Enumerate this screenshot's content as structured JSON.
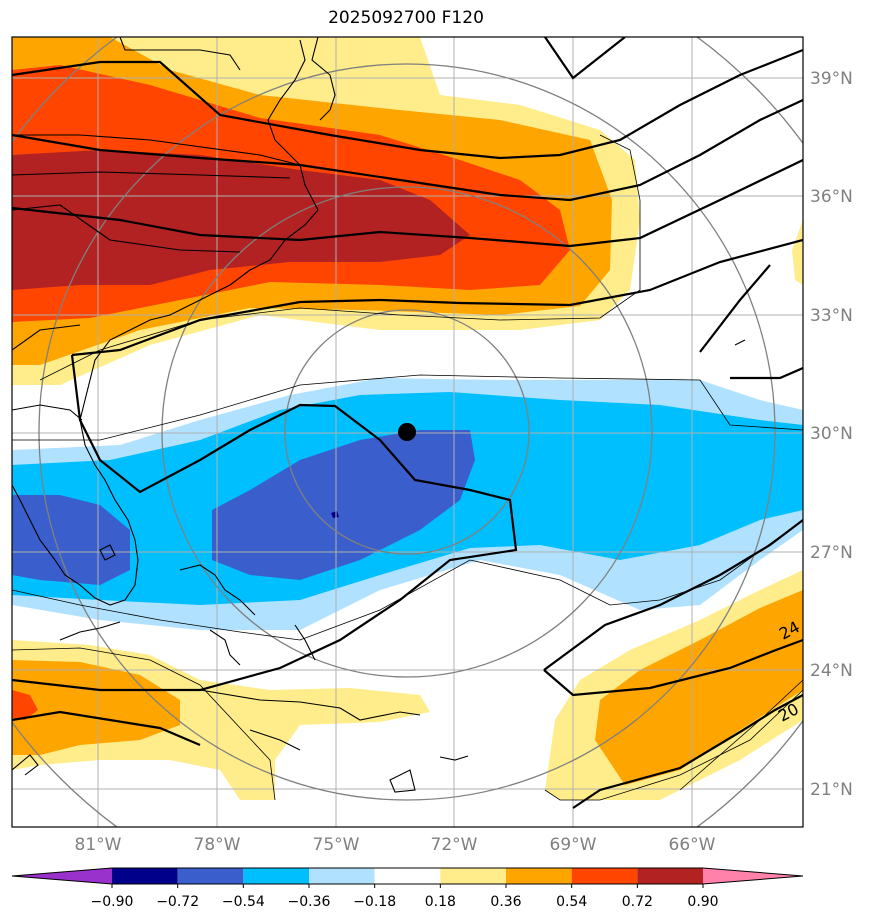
{
  "title": "2025092700 F120",
  "lat_labels": [
    "39°N",
    "36°N",
    "33°N",
    "30°N",
    "27°N",
    "24°N",
    "21°N"
  ],
  "lon_labels": [
    "81°W",
    "78°W",
    "75°W",
    "72°W",
    "69°W",
    "66°W"
  ],
  "contour_labels": [
    "24",
    "20"
  ],
  "colorbar": {
    "tick_labels": [
      "−0.90",
      "−0.72",
      "−0.54",
      "−0.36",
      "−0.18",
      "0.18",
      "0.36",
      "0.54",
      "0.72",
      "0.90"
    ],
    "colors": [
      "#9932cc",
      "#00008b",
      "#3a5fcd",
      "#00bfff",
      "#b0e2ff",
      "#ffffff",
      "#ffec8b",
      "#ffa500",
      "#ff4500",
      "#b22222",
      "#ff82ab"
    ]
  },
  "fill_colors": {
    "yellow": "#ffec8b",
    "orange": "#ffa500",
    "red": "#ff4500",
    "darkred": "#b22222",
    "lightblue": "#b0e2ff",
    "blue": "#00bfff",
    "royal": "#3a5fcd",
    "navy": "#00008b"
  }
}
